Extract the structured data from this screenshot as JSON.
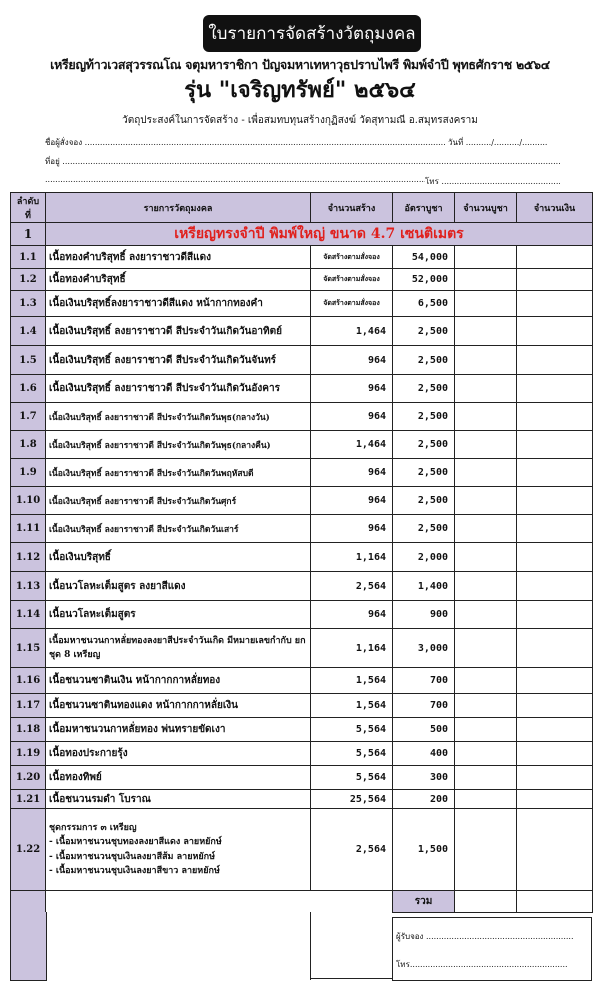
{
  "header": {
    "title": "ใบรายการจัดสร้างวัตถุมงคล",
    "subtitle": "เหรียญท้าวเวสสุวรรณโณ จตุมหาราชิกา ปัญจมหาเทหาวุธปราบไพรี พิมพ์จำปี พุทธศักราช ๒๕๖๔",
    "edition": "รุ่น \"เจริญทรัพย์\" ๒๕๖๔",
    "purpose": "วัตถุประสงค์ในการจัดสร้าง   -  เพื่อสมทบทุนสร้างกุฏิสงฆ์ วัดสุทามณี อ.สมุทรสงคราม"
  },
  "form": {
    "orderer_label": "ชื่อผู้สั่งจอง",
    "date_label": "วันที่ ........../........../..........",
    "address_label": "ที่อยู่",
    "phone_label": "โทร"
  },
  "table": {
    "headers": [
      "ลำดับที่",
      "รายการวัตถุมงคล",
      "จำนวนสร้าง",
      "อัตราบูชา",
      "จำนวนบูชา",
      "จำนวนเงิน"
    ],
    "section": {
      "no": "1",
      "title": "เหรียญทรงจำปี พิมพ์ใหญ่ ขนาด 4.7 เซนติเมตร"
    },
    "rows": [
      {
        "no": "1.1",
        "item": "เนื้อทองคำบริสุทธิ์ ลงยาราชาวดีสีแดง",
        "qty": "จัดสร้างตามสั่งจอง",
        "price": "54,000"
      },
      {
        "no": "1.2",
        "item": "เนื้อทองคำบริสุทธิ์",
        "qty": "จัดสร้างตามสั่งจอง",
        "price": "52,000"
      },
      {
        "no": "1.3",
        "item": "เนื้อเงินบริสุทธิ์ลงยาราชาวดีสีแดง หน้ากากทองคำ",
        "qty": "จัดสร้างตามสั่งจอง",
        "price": "6,500"
      },
      {
        "no": "1.4",
        "item": "เนื้อเงินบริสุทธิ์ ลงยาราชาวดี สีประจำวันเกิดวันอาทิตย์",
        "qty": "1,464",
        "price": "2,500"
      },
      {
        "no": "1.5",
        "item": "เนื้อเงินบริสุทธิ์ ลงยาราชาวดี สีประจำวันเกิดวันจันทร์",
        "qty": "964",
        "price": "2,500"
      },
      {
        "no": "1.6",
        "item": "เนื้อเงินบริสุทธิ์ ลงยาราชาวดี สีประจำวันเกิดวันอังคาร",
        "qty": "964",
        "price": "2,500"
      },
      {
        "no": "1.7",
        "item": "เนื้อเงินบริสุทธิ์ ลงยาราชาวดี สีประจำวันเกิดวันพุธ(กลางวัน)",
        "qty": "964",
        "price": "2,500"
      },
      {
        "no": "1.8",
        "item": "เนื้อเงินบริสุทธิ์ ลงยาราชาวดี สีประจำวันเกิดวันพุธ(กลางคืน)",
        "qty": "1,464",
        "price": "2,500"
      },
      {
        "no": "1.9",
        "item": "เนื้อเงินบริสุทธิ์ ลงยาราชาวดี สีประจำวันเกิดวันพฤหัสบดี",
        "qty": "964",
        "price": "2,500"
      },
      {
        "no": "1.10",
        "item": "เนื้อเงินบริสุทธิ์ ลงยาราชาวดี สีประจำวันเกิดวันศุกร์",
        "qty": "964",
        "price": "2,500"
      },
      {
        "no": "1.11",
        "item": "เนื้อเงินบริสุทธิ์ ลงยาราชาวดี สีประจำวันเกิดวันเสาร์",
        "qty": "964",
        "price": "2,500"
      },
      {
        "no": "1.12",
        "item": "เนื้อเงินบริสุทธิ์",
        "qty": "1,164",
        "price": "2,000"
      },
      {
        "no": "1.13",
        "item": "เนื้อนวโลหะเต็มสูตร ลงยาสีแดง",
        "qty": "2,564",
        "price": "1,400"
      },
      {
        "no": "1.14",
        "item": "เนื้อนวโลหะเต็มสูตร",
        "qty": "964",
        "price": "900"
      },
      {
        "no": "1.15",
        "item": "เนื้อมหาชนวนกาหลั่ยทองลงยาสีประจำวันเกิด มีหมายเลขกำกับ ยกชุด 8 เหรียญ",
        "qty": "1,164",
        "price": "3,000"
      },
      {
        "no": "1.16",
        "item": "เนื้อชนวนซาตินเงิน หน้ากากกาหลั่ยทอง",
        "qty": "1,564",
        "price": "700"
      },
      {
        "no": "1.17",
        "item": "เนื้อชนวนซาตินทองแดง หน้ากากกาหลั่ยเงิน",
        "qty": "1,564",
        "price": "700"
      },
      {
        "no": "1.18",
        "item": "เนื้อมหาชนวนกาหลั่ยทอง พ่นทรายขัดเงา",
        "qty": "5,564",
        "price": "500"
      },
      {
        "no": "1.19",
        "item": "เนื้อทองประกายรุ้ง",
        "qty": "5,564",
        "price": "400"
      },
      {
        "no": "1.20",
        "item": "เนื้อทองทิพย์",
        "qty": "5,564",
        "price": "300"
      },
      {
        "no": "1.21",
        "item": "เนื้อชนวนรมดำ โบราณ",
        "qty": "25,564",
        "price": "200"
      },
      {
        "no": "1.22",
        "item": "ชุดกรรมการ ๓ เหรียญ\n - เนื้อมหาชนวนชุบทองลงยาสีแดง ลายหยักษ์\n - เนื้อมหาชนวนชุบเงินลงยาสีส้ม ลายหยักษ์\n - เนื้อมหาชนวนชุบเงินลงยาสีขาว ลายหยักษ์",
        "qty": "2,564",
        "price": "1,500"
      }
    ],
    "total_label": "รวม"
  },
  "receiver": {
    "receiver_label": "ผู้รับจอง ..........................................................",
    "phone_label": "โทร.............................................................."
  },
  "colors": {
    "accent_purple": "#cbc3de",
    "section_red": "#e0201c"
  }
}
